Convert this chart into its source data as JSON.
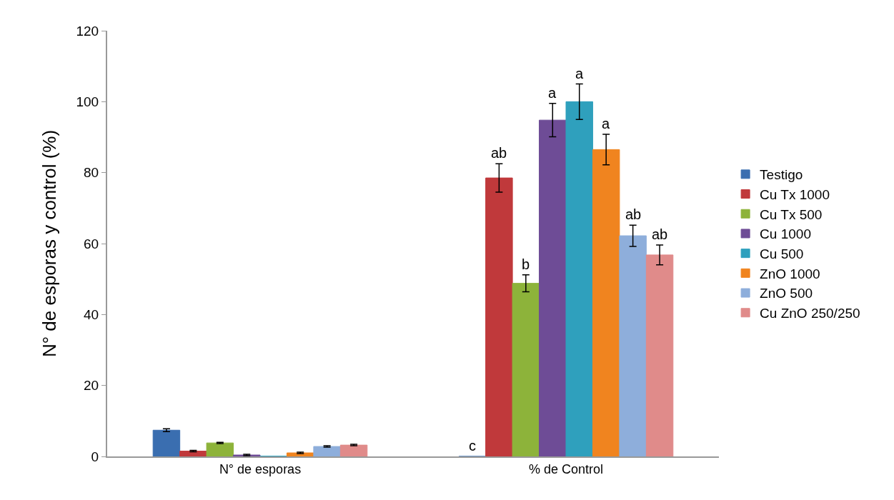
{
  "chart_data": {
    "type": "bar",
    "ylabel": "N° de esporas y control (%)",
    "categories": [
      "N° de esporas",
      "% de Control"
    ],
    "ylim": [
      0,
      120
    ],
    "yticks": [
      0,
      20,
      40,
      60,
      80,
      100,
      120
    ],
    "grid": false,
    "legend": "right",
    "series": [
      {
        "name": "Testigo",
        "color": "#3a6eb0",
        "values": [
          7.4,
          0
        ],
        "errors": [
          0.4,
          null
        ],
        "value_labels": [
          null,
          "c"
        ]
      },
      {
        "name": "Cu Tx 1000",
        "color": "#c0393b",
        "values": [
          1.5,
          78.5
        ],
        "errors": [
          0.2,
          4
        ],
        "value_labels": [
          null,
          "ab"
        ]
      },
      {
        "name": "Cu Tx 500",
        "color": "#8db33a",
        "values": [
          3.8,
          48.8
        ],
        "errors": [
          0.2,
          2.4
        ],
        "value_labels": [
          null,
          "b"
        ]
      },
      {
        "name": "Cu 1000",
        "color": "#6e4c96",
        "values": [
          0.4,
          94.8
        ],
        "errors": [
          0.2,
          4.7
        ],
        "value_labels": [
          null,
          "a"
        ]
      },
      {
        "name": "Cu 500",
        "color": "#2fa0bd",
        "values": [
          0.1,
          100
        ],
        "errors": [
          null,
          5
        ],
        "value_labels": [
          null,
          "a"
        ]
      },
      {
        "name": "ZnO 1000",
        "color": "#f0841f",
        "values": [
          1.0,
          86.5
        ],
        "errors": [
          0.2,
          4.3
        ],
        "value_labels": [
          null,
          "a"
        ]
      },
      {
        "name": "ZnO 500",
        "color": "#8eaedb",
        "values": [
          2.8,
          62.2
        ],
        "errors": [
          0.2,
          3
        ],
        "value_labels": [
          null,
          "ab"
        ]
      },
      {
        "name": "Cu ZnO 250/250",
        "color": "#e08b8a",
        "values": [
          3.2,
          56.8
        ],
        "errors": [
          0.2,
          2.8
        ],
        "value_labels": [
          null,
          "ab"
        ]
      }
    ]
  }
}
